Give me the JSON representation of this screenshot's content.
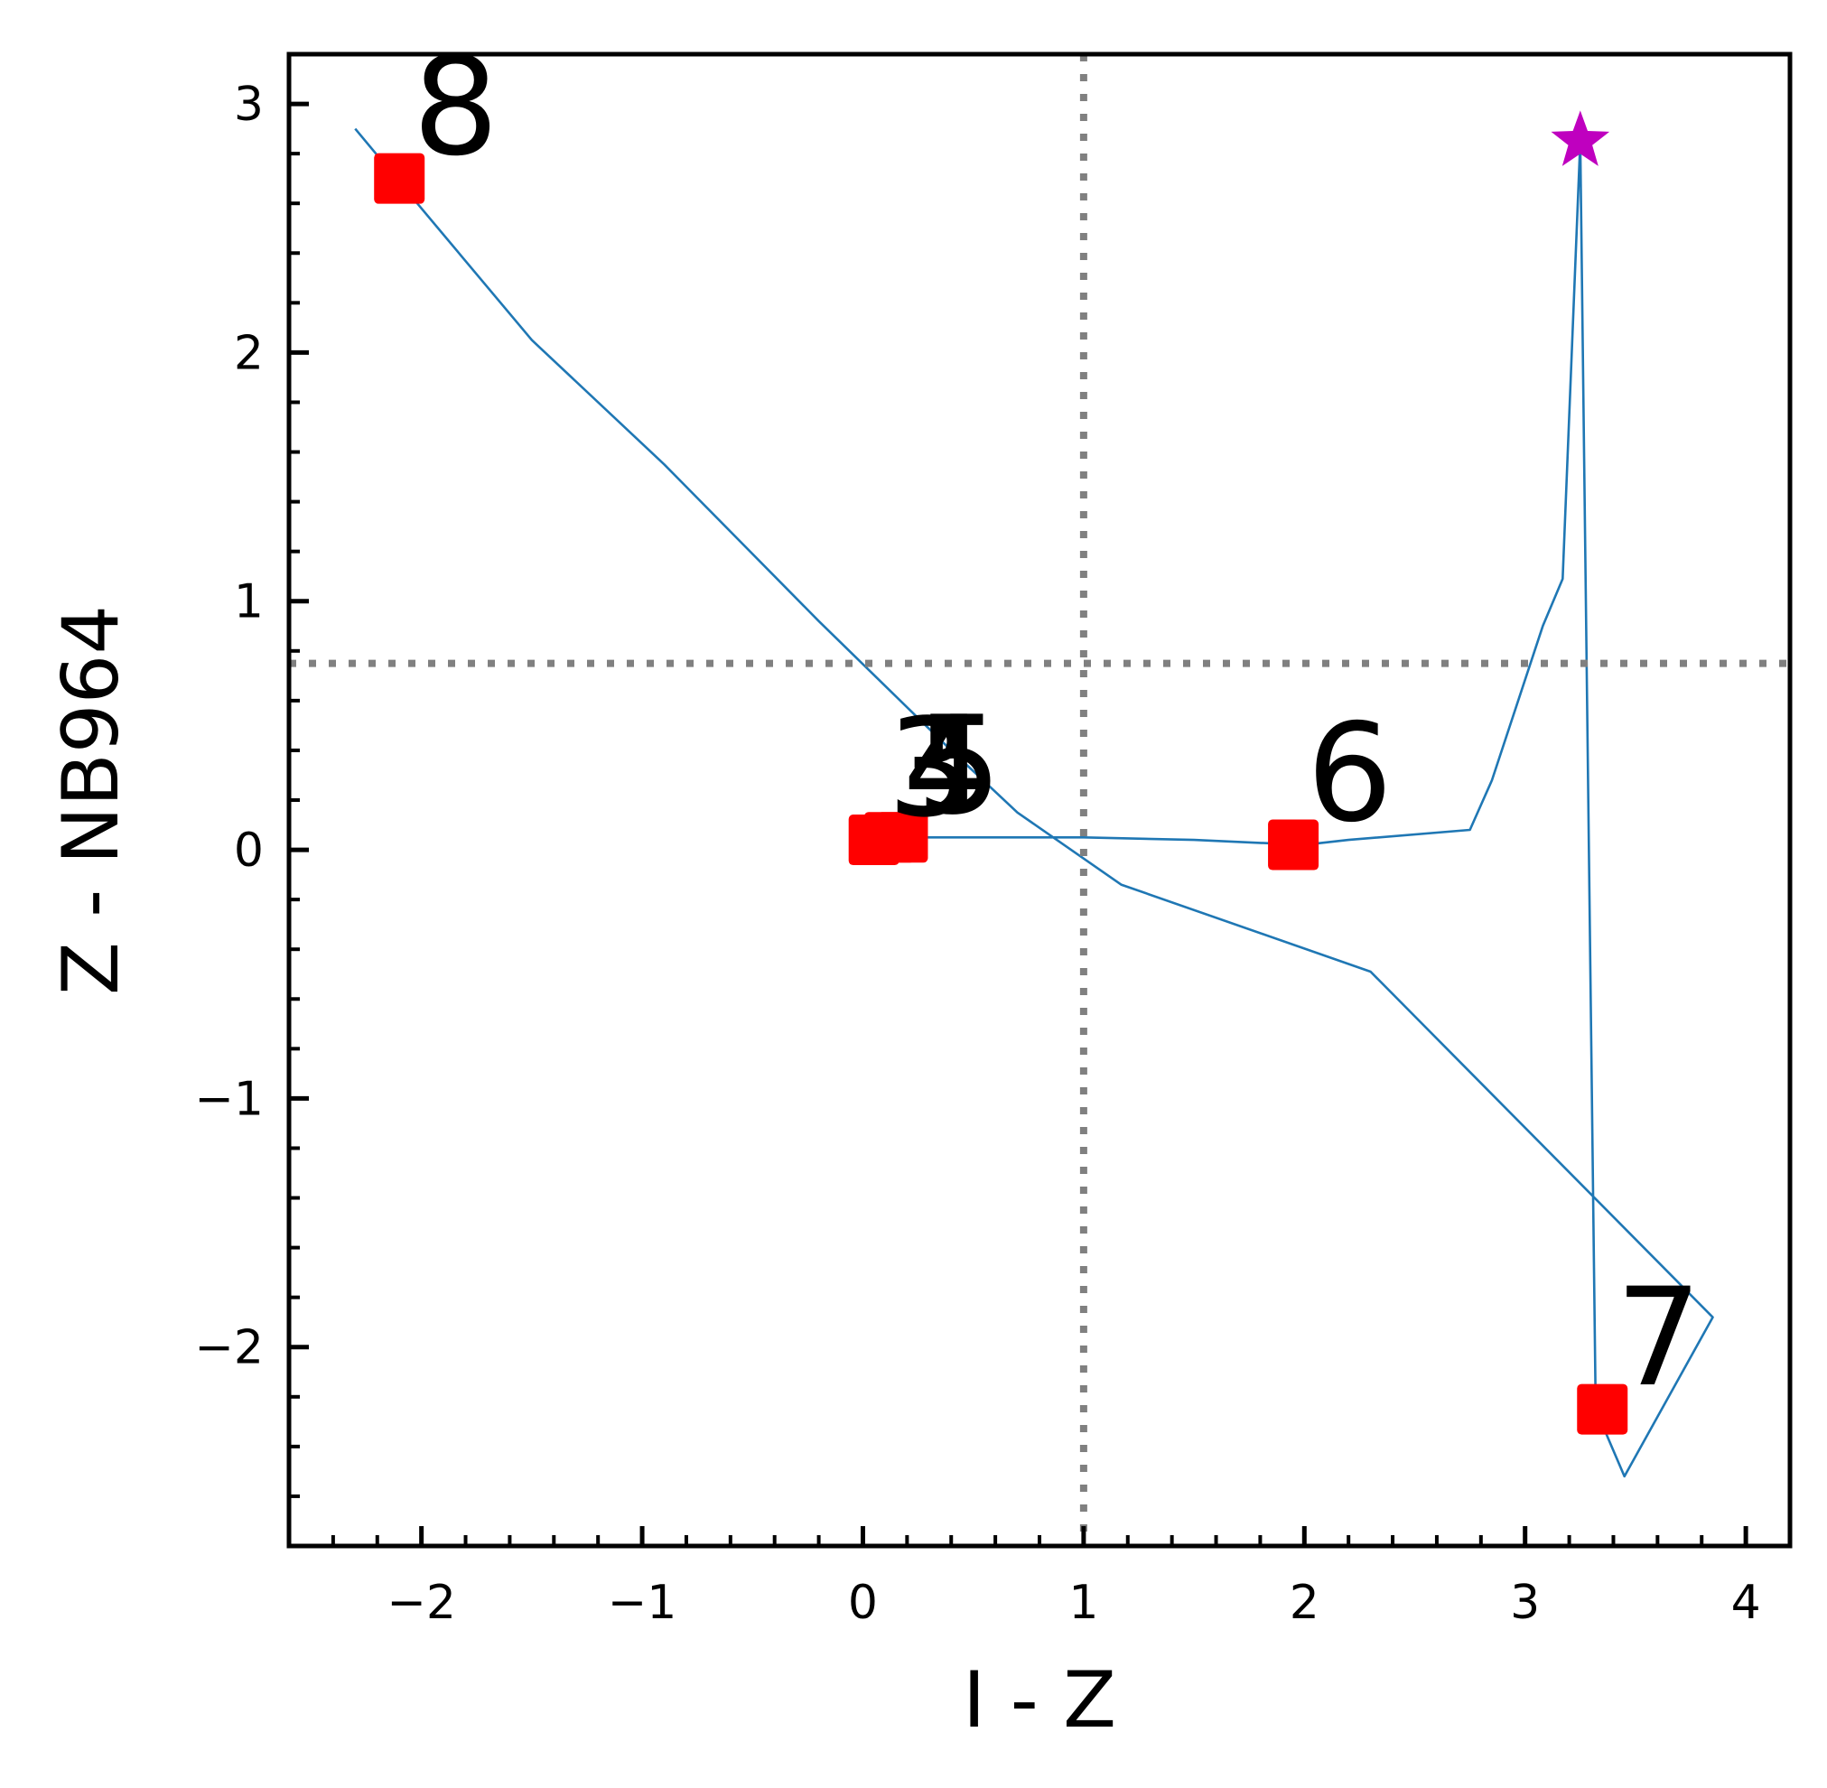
{
  "chart_data": {
    "type": "scatter",
    "title": "",
    "xlabel": "I - Z",
    "ylabel": "Z - NB964",
    "xlim": [
      -2.6,
      4.2
    ],
    "ylim": [
      -2.8,
      3.2
    ],
    "xticks": [
      -2,
      -1,
      0,
      1,
      2,
      3,
      4
    ],
    "yticks": [
      -2,
      -1,
      0,
      1,
      2,
      3
    ],
    "xtick_labels": [
      "−2",
      "−1",
      "0",
      "1",
      "2",
      "3",
      "4"
    ],
    "ytick_labels": [
      "−2",
      "−1",
      "0",
      "1",
      "2",
      "3"
    ],
    "minor_step": 0.2,
    "grid": false,
    "reference_lines": {
      "vertical_x": 1.0,
      "horizontal_y": 0.75,
      "color": "#808080",
      "style": "dotted"
    },
    "points": [
      {
        "label": "8",
        "x": -2.1,
        "y": 2.7
      },
      {
        "label": "3",
        "x": 0.05,
        "y": 0.04
      },
      {
        "label": "4",
        "x": 0.12,
        "y": 0.05
      },
      {
        "label": "5",
        "x": 0.18,
        "y": 0.05
      },
      {
        "label": "6",
        "x": 1.95,
        "y": 0.02
      },
      {
        "label": "7",
        "x": 3.35,
        "y": -2.25
      }
    ],
    "point_color": "#ff0000",
    "label_offset": {
      "x": 0.06,
      "y": 0.1
    },
    "star": {
      "x": 3.25,
      "y": 2.85,
      "color": "#bf00bf"
    },
    "line_color": "#1f77b4",
    "track": [
      [
        -2.3,
        2.9
      ],
      [
        -2.0,
        2.58
      ],
      [
        -1.5,
        2.05
      ],
      [
        -0.9,
        1.55
      ],
      [
        -0.2,
        0.92
      ],
      [
        0.4,
        0.4
      ],
      [
        0.7,
        0.15
      ],
      [
        1.17,
        -0.14
      ],
      [
        2.3,
        -0.49
      ],
      [
        3.85,
        -1.88
      ],
      [
        3.45,
        -2.52
      ],
      [
        3.32,
        -2.25
      ],
      [
        3.25,
        2.85
      ],
      [
        3.17,
        1.09
      ],
      [
        3.08,
        0.9
      ],
      [
        2.85,
        0.28
      ],
      [
        2.8,
        0.18
      ],
      [
        2.75,
        0.08
      ],
      [
        2.2,
        0.04
      ],
      [
        2.0,
        0.02
      ],
      [
        1.5,
        0.04
      ],
      [
        1.0,
        0.05
      ],
      [
        0.5,
        0.05
      ],
      [
        0.05,
        0.05
      ]
    ]
  }
}
